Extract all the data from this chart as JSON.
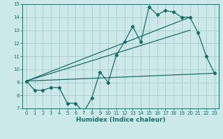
{
  "bg_color": "#cce8e8",
  "grid_color": "#a8cccc",
  "line_color": "#1a6b6b",
  "xlabel": "Humidex (Indice chaleur)",
  "xlim": [
    -0.5,
    23.5
  ],
  "ylim": [
    7,
    15
  ],
  "yticks": [
    7,
    8,
    9,
    10,
    11,
    12,
    13,
    14,
    15
  ],
  "xticks": [
    0,
    1,
    2,
    3,
    4,
    5,
    6,
    7,
    8,
    9,
    10,
    11,
    12,
    13,
    14,
    15,
    16,
    17,
    18,
    19,
    20,
    21,
    22,
    23
  ],
  "line1_x": [
    0,
    1,
    2,
    3,
    4,
    5,
    6,
    7,
    8,
    9,
    10,
    11,
    12,
    13,
    14,
    15,
    16,
    17,
    18,
    19,
    20,
    21,
    22,
    23
  ],
  "line1_y": [
    9.1,
    8.4,
    8.4,
    8.6,
    8.6,
    7.4,
    7.4,
    6.7,
    7.8,
    9.8,
    9.0,
    11.1,
    12.1,
    13.3,
    12.1,
    14.8,
    14.2,
    14.5,
    14.4,
    14.0,
    14.0,
    12.8,
    11.0,
    9.7
  ],
  "line2_x": [
    0,
    23
  ],
  "line2_y": [
    9.1,
    9.7
  ],
  "line3_x": [
    0,
    20
  ],
  "line3_y": [
    9.1,
    13.0
  ],
  "line4_x": [
    0,
    20
  ],
  "line4_y": [
    9.1,
    14.0
  ]
}
